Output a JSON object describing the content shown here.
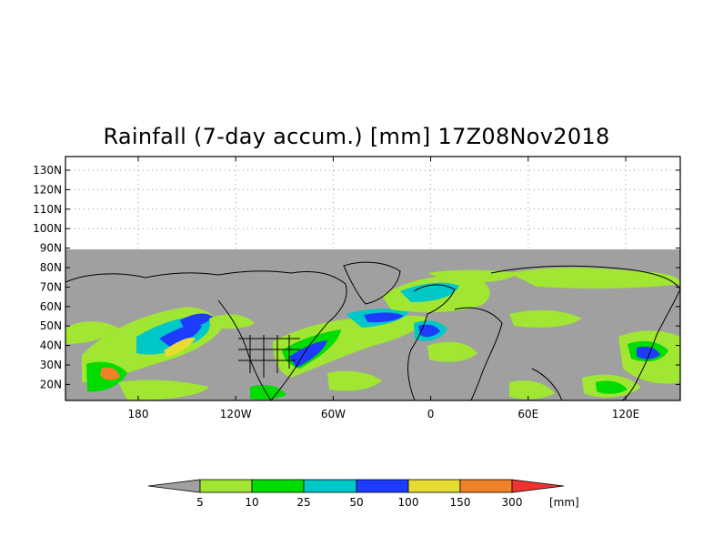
{
  "title": "Rainfall (7-day accum.) [mm] 17Z08Nov2018",
  "lat_labels": [
    "130N",
    "120N",
    "110N",
    "100N",
    "90N",
    "80N",
    "70N",
    "60N",
    "50N",
    "40N",
    "30N",
    "20N"
  ],
  "lon_labels": [
    "180",
    "120W",
    "60W",
    "0",
    "60E",
    "120E"
  ],
  "colorbar": {
    "levels": [
      "5",
      "10",
      "25",
      "50",
      "100",
      "150",
      "300"
    ],
    "unit": "[mm]",
    "colors": [
      "#a0a0a0",
      "#a0e632",
      "#00dc00",
      "#00c8c8",
      "#1e3cff",
      "#e6dc32",
      "#f08228",
      "#f03232"
    ]
  },
  "colors": {
    "no_rain": "#a0a0a0",
    "background": "#ffffff",
    "coastline": "#000000"
  }
}
